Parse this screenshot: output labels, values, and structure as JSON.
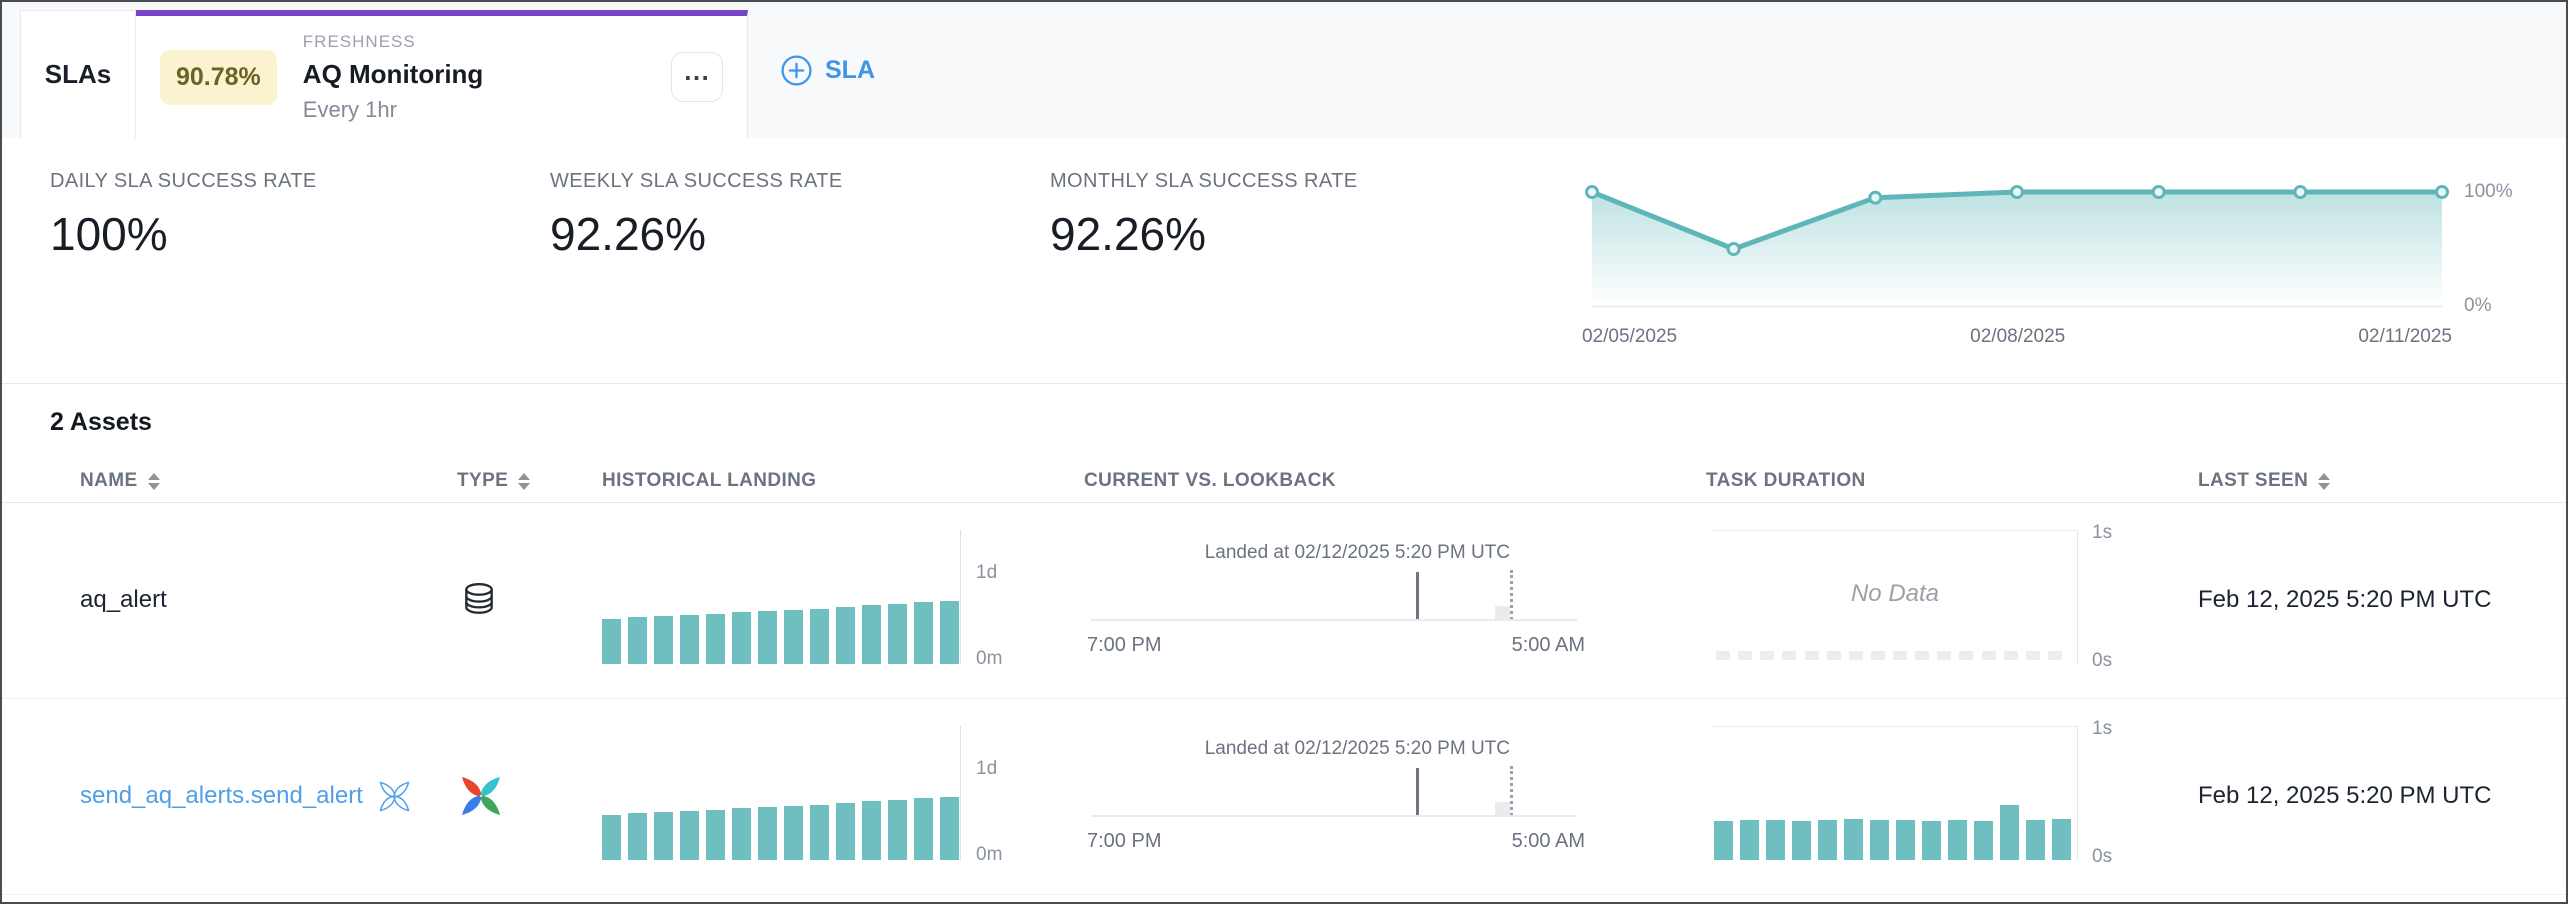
{
  "header": {
    "section_label": "SLAs",
    "active_tab": {
      "badge_value": "90.78%",
      "kind_label": "FRESHNESS",
      "title": "AQ Monitoring",
      "schedule": "Every 1hr",
      "menu_icon": "ellipsis-icon"
    },
    "add_sla": {
      "label": "SLA",
      "icon": "circle-plus-icon"
    }
  },
  "summary": {
    "stats": [
      {
        "label": "DAILY SLA SUCCESS RATE",
        "value": "100%"
      },
      {
        "label": "WEEKLY SLA SUCCESS RATE",
        "value": "92.26%"
      },
      {
        "label": "MONTHLY SLA SUCCESS RATE",
        "value": "92.26%"
      }
    ]
  },
  "chart_data": [
    {
      "id": "sla_success_trend",
      "type": "area",
      "title": "SLA success rate trend",
      "x": [
        "02/05/2025",
        "02/06/2025",
        "02/07/2025",
        "02/08/2025",
        "02/09/2025",
        "02/10/2025",
        "02/11/2025"
      ],
      "values": [
        100,
        50,
        95,
        100,
        100,
        100,
        100
      ],
      "x_tick_labels": [
        "02/05/2025",
        "02/08/2025",
        "02/11/2025"
      ],
      "y_tick_labels": [
        "100%",
        "0%"
      ],
      "ylim": [
        0,
        100
      ],
      "grid": "off",
      "legend": "none"
    },
    {
      "id": "hist_aq_alert",
      "type": "bar",
      "title": "Historical landing - aq_alert",
      "ymax_label": "1d",
      "ymin_label": "0m",
      "values_fraction_of_1d": [
        0.49,
        0.51,
        0.52,
        0.53,
        0.54,
        0.57,
        0.58,
        0.59,
        0.6,
        0.62,
        0.64,
        0.65,
        0.67,
        0.68
      ]
    },
    {
      "id": "hist_send_alert",
      "type": "bar",
      "title": "Historical landing - send_aq_alerts.send_alert",
      "ymax_label": "1d",
      "ymin_label": "0m",
      "values_fraction_of_1d": [
        0.49,
        0.51,
        0.52,
        0.53,
        0.54,
        0.57,
        0.58,
        0.59,
        0.6,
        0.62,
        0.64,
        0.65,
        0.67,
        0.68
      ]
    },
    {
      "id": "cvl_aq_alert",
      "type": "timeline",
      "title": "Current vs. lookback - aq_alert",
      "annotation": "Landed at 02/12/2025 5:20 PM UTC",
      "x_start_label": "7:00 PM",
      "x_end_label": "5:00 AM",
      "landed_marker_pct": 66,
      "lookback_window_pct": 85
    },
    {
      "id": "cvl_send_alert",
      "type": "timeline",
      "title": "Current vs. lookback - send_aq_alerts.send_alert",
      "annotation": "Landed at 02/12/2025 5:20 PM UTC",
      "x_start_label": "7:00 PM",
      "x_end_label": "5:00 AM",
      "landed_marker_pct": 66,
      "lookback_window_pct": 85
    },
    {
      "id": "task_aq_alert",
      "type": "bar",
      "title": "Task duration - aq_alert",
      "ymax_label": "1s",
      "ymin_label": "0s",
      "no_data": true,
      "no_data_label": "No Data",
      "placeholder_dash_count": 16,
      "values_seconds": []
    },
    {
      "id": "task_send_alert",
      "type": "bar",
      "title": "Task duration - send_aq_alerts.send_alert",
      "ymax_label": "1s",
      "ymin_label": "0s",
      "no_data": false,
      "values_seconds": [
        0.29,
        0.3,
        0.3,
        0.29,
        0.3,
        0.31,
        0.3,
        0.3,
        0.29,
        0.3,
        0.29,
        0.41,
        0.3,
        0.31
      ]
    }
  ],
  "assets": {
    "count_label": "2 Assets",
    "columns": [
      {
        "label": "NAME",
        "sortable": true
      },
      {
        "label": "TYPE",
        "sortable": true
      },
      {
        "label": "HISTORICAL LANDING",
        "sortable": false
      },
      {
        "label": "CURRENT VS. LOOKBACK",
        "sortable": false
      },
      {
        "label": "TASK DURATION",
        "sortable": false
      },
      {
        "label": "LAST SEEN",
        "sortable": true
      }
    ],
    "rows": [
      {
        "name": "aq_alert",
        "is_link": false,
        "name_icon": null,
        "type_icon": "database-icon",
        "charts": {
          "historical_landing": "hist_aq_alert",
          "current_vs_lookback": "cvl_aq_alert",
          "task_duration": "task_aq_alert"
        },
        "last_seen": "Feb 12, 2025 5:20 PM UTC"
      },
      {
        "name": "send_aq_alerts.send_alert",
        "is_link": true,
        "name_icon": "airflow-outline-icon",
        "type_icon": "airflow-icon",
        "charts": {
          "historical_landing": "hist_send_alert",
          "current_vs_lookback": "cvl_send_alert",
          "task_duration": "task_send_alert"
        },
        "last_seen": "Feb 12, 2025 5:20 PM UTC"
      }
    ]
  },
  "colors": {
    "accent_purple": "#7845C8",
    "badge_bg": "#FBF3D0",
    "badge_text": "#6B6226",
    "teal": "#6FBEC0",
    "trend_line": "#5FB6B9",
    "link_blue": "#4F9FE8",
    "action_blue": "#3D96E8"
  }
}
